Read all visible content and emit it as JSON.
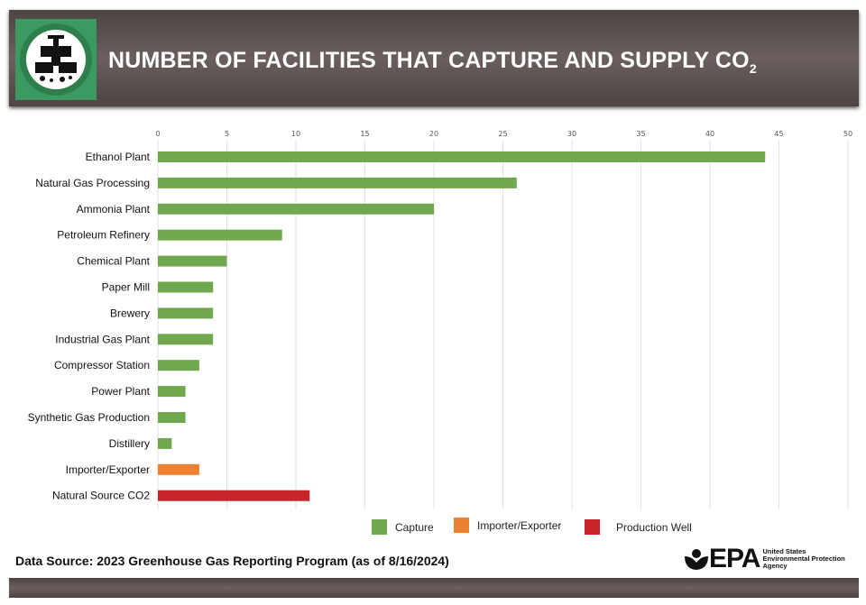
{
  "header": {
    "title": "NUMBER OF FACILITIES THAT CAPTURE AND SUPPLY CO",
    "title_subscript": "2",
    "logo_icon": "co2-supply-icon"
  },
  "chart_data": {
    "type": "bar",
    "orientation": "horizontal",
    "categories": [
      "Ethanol Plant",
      "Natural Gas Processing",
      "Ammonia Plant",
      "Petroleum Refinery",
      "Chemical Plant",
      "Paper Mill",
      "Brewery",
      "Industrial Gas Plant",
      "Compressor Station",
      "Power Plant",
      "Synthetic Gas Production",
      "Distillery",
      "Importer/Exporter",
      "Natural Source CO2"
    ],
    "values": [
      44,
      26,
      20,
      9,
      5,
      4,
      4,
      4,
      3,
      2,
      2,
      1,
      3,
      11
    ],
    "groups": [
      "Capture",
      "Capture",
      "Capture",
      "Capture",
      "Capture",
      "Capture",
      "Capture",
      "Capture",
      "Capture",
      "Capture",
      "Capture",
      "Capture",
      "Importer/Exporter",
      "Production Well"
    ],
    "xlim": [
      0,
      50
    ],
    "xticks": [
      0,
      5,
      10,
      15,
      20,
      25,
      30,
      35,
      40,
      45,
      50
    ],
    "grid": true,
    "legend_position": "bottom",
    "legend": [
      {
        "name": "Capture",
        "color": "#70a84f"
      },
      {
        "name": "Importer/Exporter",
        "color": "#ee8131"
      },
      {
        "name": "Production Well",
        "color": "#c8242c"
      }
    ]
  },
  "source": "Data Source: 2023 Greenhouse Gas Reporting Program (as of 8/16/2024)",
  "epa": {
    "wordmark": "EPA",
    "line1": "United States",
    "line2": "Environmental Protection",
    "line3": "Agency"
  }
}
